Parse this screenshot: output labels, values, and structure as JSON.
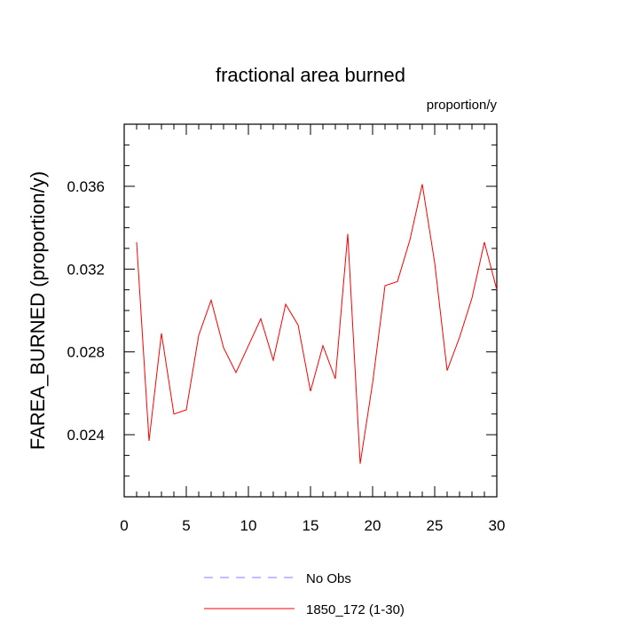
{
  "chart_data": {
    "type": "line",
    "title": "fractional area burned",
    "subtitle": "proportion/y",
    "xlabel": "",
    "ylabel": "FAREA_BURNED  (proportion/y)",
    "xlim": [
      0,
      30
    ],
    "ylim": [
      0.021,
      0.039
    ],
    "x_ticks": [
      0,
      5,
      10,
      15,
      20,
      25,
      30
    ],
    "x_tick_labels": [
      "0",
      "5",
      "10",
      "15",
      "20",
      "25",
      "30"
    ],
    "y_ticks": [
      0.024,
      0.028,
      0.032,
      0.036
    ],
    "y_tick_labels": [
      "0.024",
      "0.028",
      "0.032",
      "0.036"
    ],
    "grid": false,
    "legend_position": "bottom",
    "series": [
      {
        "name": "No Obs",
        "color": "#7f7fff",
        "style": "dashed",
        "x": [],
        "values": []
      },
      {
        "name": "1850_172 (1-30)",
        "color": "#ff0000",
        "style": "solid",
        "x": [
          1,
          2,
          3,
          4,
          5,
          6,
          7,
          8,
          9,
          10,
          11,
          12,
          13,
          14,
          15,
          16,
          17,
          18,
          19,
          20,
          21,
          22,
          23,
          24,
          25,
          26,
          27,
          28,
          29,
          30
        ],
        "values": [
          0.0333,
          0.0237,
          0.0289,
          0.025,
          0.0252,
          0.0288,
          0.0305,
          0.0282,
          0.027,
          0.0283,
          0.0296,
          0.0276,
          0.0303,
          0.0293,
          0.0261,
          0.0283,
          0.0267,
          0.0337,
          0.0226,
          0.0265,
          0.0312,
          0.0314,
          0.0334,
          0.0361,
          0.0323,
          0.0271,
          0.0287,
          0.0306,
          0.0333,
          0.031
        ]
      }
    ]
  }
}
